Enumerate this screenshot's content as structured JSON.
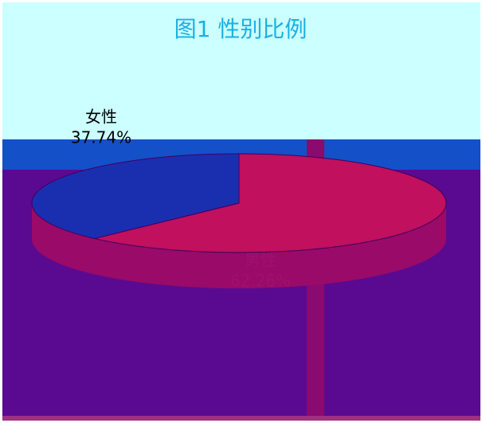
{
  "chart_data": {
    "type": "pie",
    "title": "图1  性别比例",
    "categories": [
      "女性",
      "男性"
    ],
    "values": [
      37.74,
      62.26
    ],
    "value_labels": [
      "37.74%",
      "62.26%"
    ],
    "colors": [
      "#1a2fb0",
      "#c0105e"
    ]
  }
}
